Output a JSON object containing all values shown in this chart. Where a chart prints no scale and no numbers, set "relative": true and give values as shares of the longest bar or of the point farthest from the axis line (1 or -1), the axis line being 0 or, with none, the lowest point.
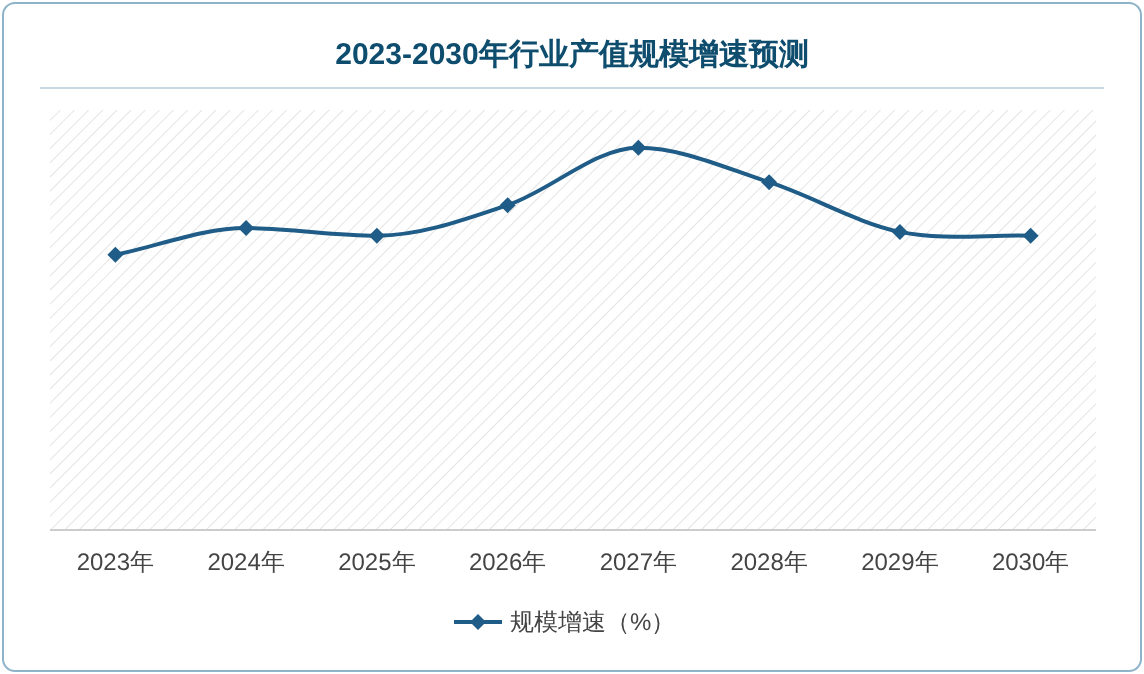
{
  "chart_data": {
    "type": "line",
    "title": "2023-2030年行业产值规模增速预测",
    "categories": [
      "2023年",
      "2024年",
      "2025年",
      "2026年",
      "2027年",
      "2028年",
      "2029年",
      "2030年"
    ],
    "relative": true,
    "series": [
      {
        "name": "规模增速（%）",
        "color": "#1f5c87",
        "values": [
          0.72,
          0.79,
          0.77,
          0.85,
          1,
          0.91,
          0.78,
          0.77
        ]
      }
    ],
    "marker": "diamond",
    "legend": "bottom"
  }
}
